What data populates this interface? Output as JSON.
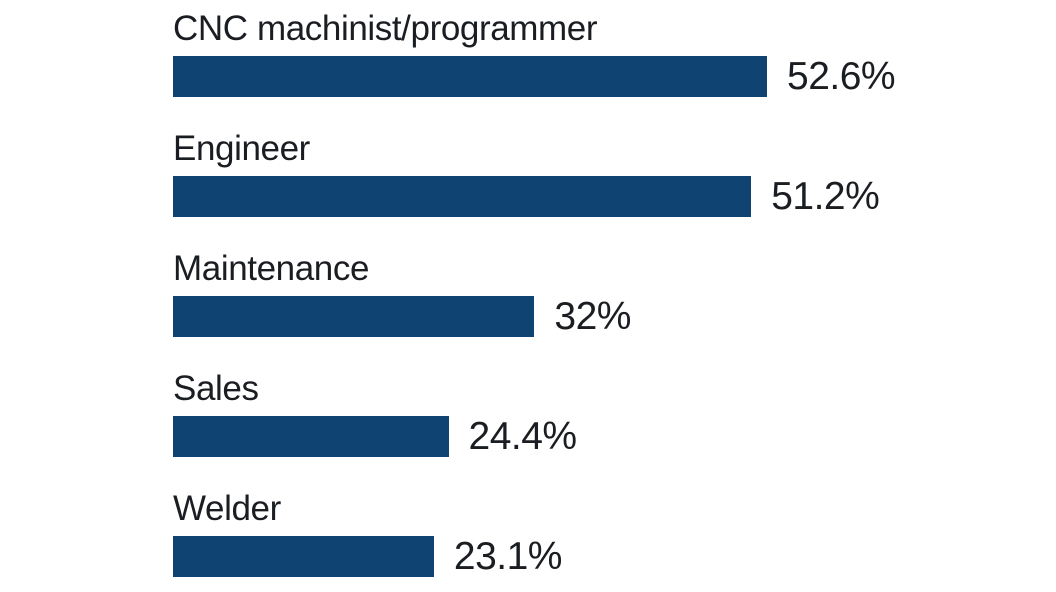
{
  "chart_data": {
    "type": "bar",
    "orientation": "horizontal",
    "title": "",
    "xlabel": "",
    "ylabel": "",
    "categories": [
      "CNC machinist/programmer",
      "Engineer",
      "Maintenance",
      "Sales",
      "Welder"
    ],
    "values": [
      52.6,
      51.2,
      32,
      24.4,
      23.1
    ],
    "value_labels": [
      "52.6%",
      "51.2%",
      "32%",
      "24.4%",
      "23.1%"
    ],
    "xlim": [
      0,
      55
    ],
    "grid": false,
    "legend": "none",
    "value_label_position": "right-of-bar"
  },
  "colors": {
    "bar": "#0F4372",
    "text": "#1A1D21",
    "background": "#FFFFFF"
  }
}
